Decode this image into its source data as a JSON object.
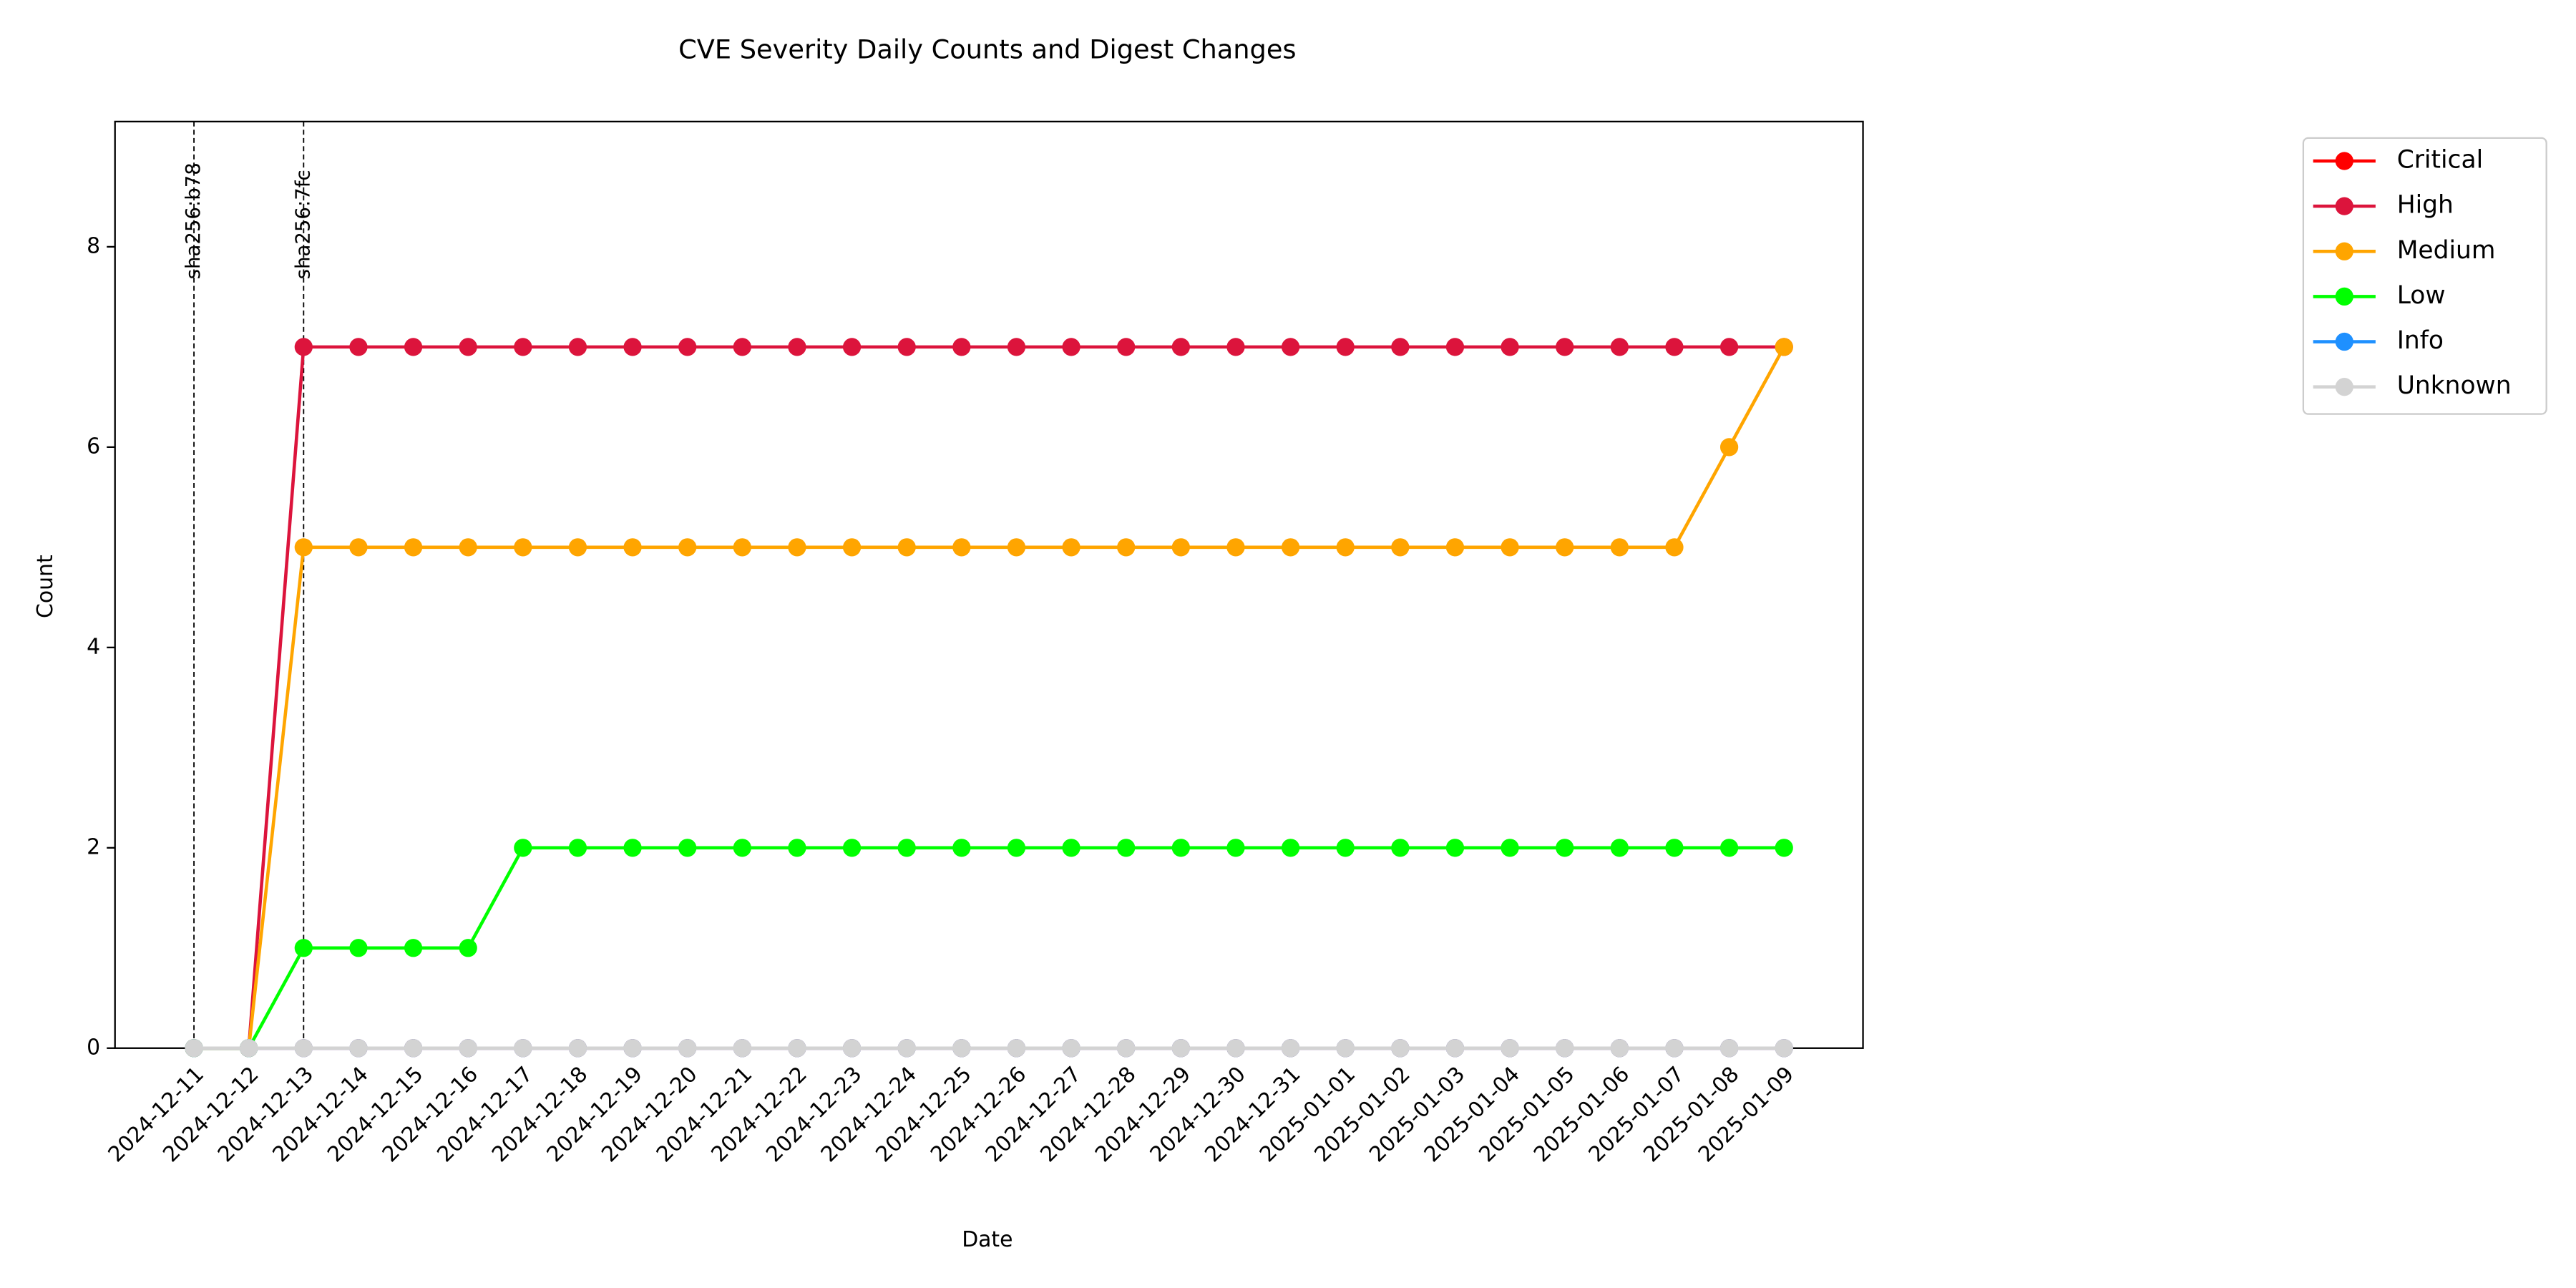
{
  "chart_data": {
    "type": "line",
    "title": "CVE Severity Daily Counts and Digest Changes",
    "xlabel": "Date",
    "ylabel": "Count",
    "categories": [
      "2024-12-11",
      "2024-12-12",
      "2024-12-13",
      "2024-12-14",
      "2024-12-15",
      "2024-12-16",
      "2024-12-17",
      "2024-12-18",
      "2024-12-19",
      "2024-12-20",
      "2024-12-21",
      "2024-12-22",
      "2024-12-23",
      "2024-12-24",
      "2024-12-25",
      "2024-12-26",
      "2024-12-27",
      "2024-12-28",
      "2024-12-29",
      "2024-12-30",
      "2024-12-31",
      "2025-01-01",
      "2025-01-02",
      "2025-01-03",
      "2025-01-04",
      "2025-01-05",
      "2025-01-06",
      "2025-01-07",
      "2025-01-08",
      "2025-01-09"
    ],
    "series": [
      {
        "name": "Critical",
        "color": "#ff0000",
        "values": [
          0,
          0,
          0,
          0,
          0,
          0,
          0,
          0,
          0,
          0,
          0,
          0,
          0,
          0,
          0,
          0,
          0,
          0,
          0,
          0,
          0,
          0,
          0,
          0,
          0,
          0,
          0,
          0,
          0,
          0
        ]
      },
      {
        "name": "High",
        "color": "#dc143c",
        "values": [
          0,
          0,
          7,
          7,
          7,
          7,
          7,
          7,
          7,
          7,
          7,
          7,
          7,
          7,
          7,
          7,
          7,
          7,
          7,
          7,
          7,
          7,
          7,
          7,
          7,
          7,
          7,
          7,
          7,
          7
        ]
      },
      {
        "name": "Medium",
        "color": "#ffa500",
        "values": [
          0,
          0,
          5,
          5,
          5,
          5,
          5,
          5,
          5,
          5,
          5,
          5,
          5,
          5,
          5,
          5,
          5,
          5,
          5,
          5,
          5,
          5,
          5,
          5,
          5,
          5,
          5,
          5,
          6,
          7
        ]
      },
      {
        "name": "Low",
        "color": "#00ff00",
        "values": [
          0,
          0,
          1,
          1,
          1,
          1,
          2,
          2,
          2,
          2,
          2,
          2,
          2,
          2,
          2,
          2,
          2,
          2,
          2,
          2,
          2,
          2,
          2,
          2,
          2,
          2,
          2,
          2,
          2,
          2
        ]
      },
      {
        "name": "Info",
        "color": "#1e90ff",
        "values": [
          0,
          0,
          0,
          0,
          0,
          0,
          0,
          0,
          0,
          0,
          0,
          0,
          0,
          0,
          0,
          0,
          0,
          0,
          0,
          0,
          0,
          0,
          0,
          0,
          0,
          0,
          0,
          0,
          0,
          0
        ]
      },
      {
        "name": "Unknown",
        "color": "#d3d3d3",
        "values": [
          0,
          0,
          0,
          0,
          0,
          0,
          0,
          0,
          0,
          0,
          0,
          0,
          0,
          0,
          0,
          0,
          0,
          0,
          0,
          0,
          0,
          0,
          0,
          0,
          0,
          0,
          0,
          0,
          0,
          0
        ]
      }
    ],
    "annotations": [
      {
        "x": "2024-12-11",
        "label": "sha256:b78"
      },
      {
        "x": "2024-12-13",
        "label": "sha256:7fc"
      }
    ],
    "ylim": [
      0,
      9.25
    ],
    "yticks": [
      0,
      2,
      4,
      6,
      8
    ],
    "legend": "upper right outside",
    "grid": false
  }
}
